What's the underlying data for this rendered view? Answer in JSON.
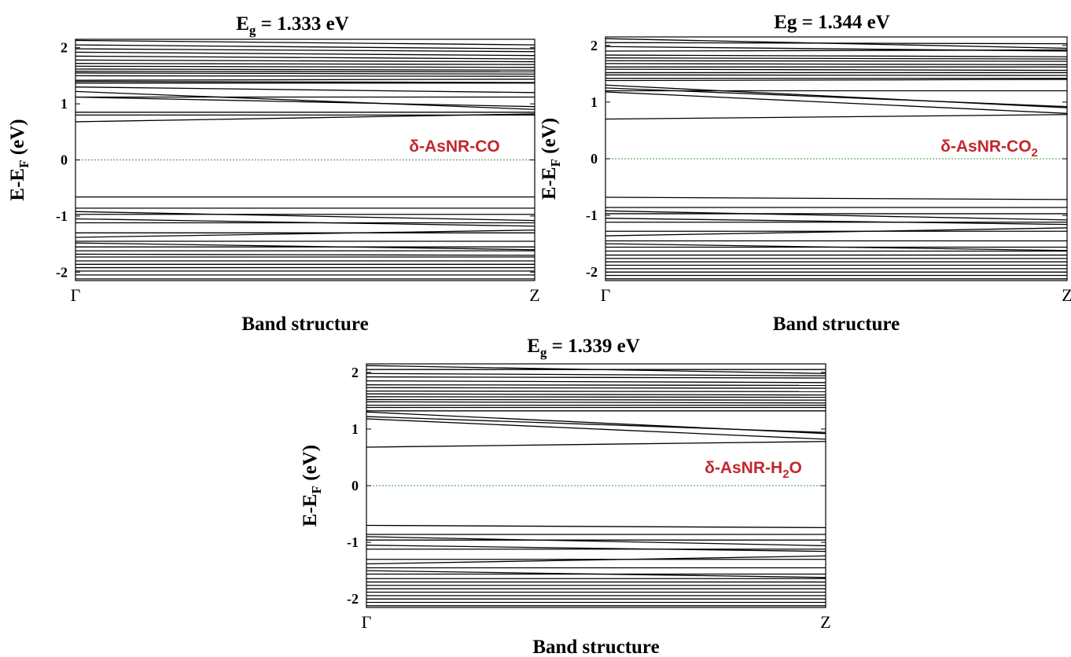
{
  "chart_data": [
    {
      "type": "line",
      "panel": "top-left",
      "title": {
        "pre": "E",
        "sub": "g",
        "post": " = 1.333 eV"
      },
      "xlabel": "Band structure",
      "ylabel": {
        "pre": "E-E",
        "sub": "F",
        "post": " (eV)"
      },
      "x_ticks": [
        "Γ",
        "Z"
      ],
      "y_ticks": [
        2,
        1,
        0,
        -1,
        -2
      ],
      "ylim": [
        -2.15,
        2.15
      ],
      "fermi_level": 0,
      "annotation": {
        "pre": "δ-AsNR-CO",
        "sub": "",
        "post": ""
      },
      "bands": [
        [
          2.13,
          2.05
        ],
        [
          2.05,
          1.98
        ],
        [
          1.98,
          1.93
        ],
        [
          1.92,
          1.86
        ],
        [
          1.85,
          1.8
        ],
        [
          1.78,
          1.75
        ],
        [
          1.72,
          1.7
        ],
        [
          1.67,
          1.65
        ],
        [
          1.62,
          1.6
        ],
        [
          1.58,
          1.57
        ],
        [
          1.55,
          1.53
        ],
        [
          1.5,
          1.49
        ],
        [
          1.42,
          1.44
        ],
        [
          1.4,
          1.38
        ],
        [
          1.37,
          1.37
        ],
        [
          1.3,
          1.2
        ],
        [
          1.22,
          0.9
        ],
        [
          1.12,
          0.95
        ],
        [
          1.12,
          1.12
        ],
        [
          0.85,
          0.85
        ],
        [
          0.8,
          0.8
        ],
        [
          0.68,
          0.82
        ],
        [
          -0.66,
          -0.66
        ],
        [
          -0.86,
          -0.86
        ],
        [
          -0.92,
          -1.08
        ],
        [
          -0.97,
          -0.97
        ],
        [
          -1.05,
          -1.18
        ],
        [
          -1.12,
          -1.12
        ],
        [
          -1.3,
          -1.3
        ],
        [
          -1.38,
          -1.25
        ],
        [
          -1.45,
          -1.45
        ],
        [
          -1.48,
          -1.6
        ],
        [
          -1.55,
          -1.55
        ],
        [
          -1.62,
          -1.62
        ],
        [
          -1.68,
          -1.7
        ],
        [
          -1.73,
          -1.73
        ],
        [
          -1.8,
          -1.8
        ],
        [
          -1.86,
          -1.86
        ],
        [
          -1.92,
          -1.92
        ],
        [
          -1.98,
          -1.98
        ],
        [
          -2.05,
          -2.05
        ],
        [
          -2.12,
          -2.12
        ]
      ]
    },
    {
      "type": "line",
      "panel": "top-right",
      "title": {
        "pre": "Eg = 1.344 eV",
        "sub": "",
        "post": ""
      },
      "xlabel": "Band structure",
      "ylabel": {
        "pre": "E-E",
        "sub": "F",
        "post": " (eV)"
      },
      "x_ticks": [
        "Γ",
        "Z"
      ],
      "y_ticks": [
        2,
        1,
        0,
        -1,
        -2
      ],
      "ylim": [
        -2.15,
        2.15
      ],
      "fermi_level": 0,
      "annotation": {
        "pre": "δ-AsNR-CO",
        "sub": "2",
        "post": ""
      },
      "bands": [
        [
          2.12,
          1.95
        ],
        [
          2.05,
          2.03
        ],
        [
          1.98,
          1.9
        ],
        [
          1.9,
          1.92
        ],
        [
          1.83,
          1.8
        ],
        [
          1.78,
          1.76
        ],
        [
          1.73,
          1.72
        ],
        [
          1.68,
          1.66
        ],
        [
          1.62,
          1.62
        ],
        [
          1.58,
          1.56
        ],
        [
          1.52,
          1.52
        ],
        [
          1.48,
          1.47
        ],
        [
          1.42,
          1.42
        ],
        [
          1.38,
          1.4
        ],
        [
          1.3,
          0.9
        ],
        [
          1.2,
          1.2
        ],
        [
          1.18,
          0.8
        ],
        [
          1.25,
          0.92
        ],
        [
          0.7,
          0.78
        ],
        [
          -0.68,
          -0.72
        ],
        [
          -0.86,
          -0.86
        ],
        [
          -0.92,
          -1.08
        ],
        [
          -0.97,
          -0.97
        ],
        [
          -1.05,
          -1.16
        ],
        [
          -1.12,
          -1.12
        ],
        [
          -1.28,
          -1.28
        ],
        [
          -1.36,
          -1.22
        ],
        [
          -1.45,
          -1.45
        ],
        [
          -1.5,
          -1.62
        ],
        [
          -1.56,
          -1.56
        ],
        [
          -1.63,
          -1.63
        ],
        [
          -1.7,
          -1.7
        ],
        [
          -1.76,
          -1.76
        ],
        [
          -1.82,
          -1.82
        ],
        [
          -1.88,
          -1.88
        ],
        [
          -1.94,
          -1.94
        ],
        [
          -2.0,
          -2.0
        ],
        [
          -2.06,
          -2.06
        ],
        [
          -2.12,
          -2.12
        ]
      ]
    },
    {
      "type": "line",
      "panel": "bottom-center",
      "title": {
        "pre": "E",
        "sub": "g",
        "post": " = 1.339 eV"
      },
      "xlabel": "Band structure",
      "ylabel": {
        "pre": "E-E",
        "sub": "F",
        "post": " (eV)"
      },
      "x_ticks": [
        "Γ",
        "Z"
      ],
      "y_ticks": [
        2,
        1,
        0,
        -1,
        -2
      ],
      "ylim": [
        -2.15,
        2.15
      ],
      "fermi_level": 0,
      "annotation": {
        "pre": "δ-AsNR-H",
        "sub": "2",
        "post": "O"
      },
      "bands": [
        [
          2.12,
          1.98
        ],
        [
          2.05,
          2.05
        ],
        [
          1.98,
          1.94
        ],
        [
          1.92,
          1.9
        ],
        [
          1.85,
          1.82
        ],
        [
          1.78,
          1.77
        ],
        [
          1.73,
          1.72
        ],
        [
          1.67,
          1.66
        ],
        [
          1.62,
          1.6
        ],
        [
          1.57,
          1.56
        ],
        [
          1.52,
          1.51
        ],
        [
          1.48,
          1.46
        ],
        [
          1.42,
          1.42
        ],
        [
          1.38,
          1.38
        ],
        [
          1.3,
          0.92
        ],
        [
          1.32,
          1.32
        ],
        [
          1.18,
          0.82
        ],
        [
          1.22,
          0.94
        ],
        [
          0.68,
          0.78
        ],
        [
          -0.7,
          -0.74
        ],
        [
          -0.86,
          -0.86
        ],
        [
          -0.9,
          -1.06
        ],
        [
          -0.96,
          -0.96
        ],
        [
          -1.05,
          -1.16
        ],
        [
          -1.12,
          -1.12
        ],
        [
          -1.3,
          -1.3
        ],
        [
          -1.38,
          -1.24
        ],
        [
          -1.45,
          -1.45
        ],
        [
          -1.5,
          -1.62
        ],
        [
          -1.56,
          -1.56
        ],
        [
          -1.64,
          -1.64
        ],
        [
          -1.7,
          -1.7
        ],
        [
          -1.76,
          -1.76
        ],
        [
          -1.82,
          -1.82
        ],
        [
          -1.88,
          -1.88
        ],
        [
          -1.94,
          -1.94
        ],
        [
          -2.0,
          -2.0
        ],
        [
          -2.06,
          -2.06
        ],
        [
          -2.12,
          -2.12
        ]
      ]
    }
  ]
}
